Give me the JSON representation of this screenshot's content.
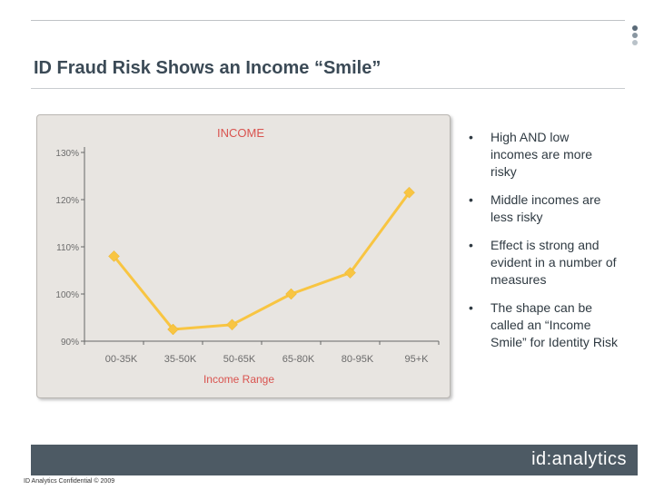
{
  "slide": {
    "title": "ID Fraud Risk Shows an Income “Smile”",
    "footer_logo": "id:analytics",
    "confidential": "ID Analytics Confidential © 2009"
  },
  "colors": {
    "line": "#f8c542",
    "marker": "#f8c542",
    "footer": "#4d5a64",
    "panel": "#e8e5e1",
    "dot_top": "#5a6a78",
    "dot_mid": "#8996a1",
    "dot_bottom": "#b9c2c9"
  },
  "bullets": [
    "High AND low incomes are more risky",
    "Middle incomes are less risky",
    "Effect is strong and evident in a number of measures",
    "The shape can be called an “Income Smile” for Identity Risk"
  ],
  "bullet_symbol": "•",
  "chart_data": {
    "type": "line",
    "title": "INCOME",
    "xlabel": "Income Range",
    "ylabel": "",
    "categories": [
      "00-35K",
      "35-50K",
      "50-65K",
      "65-80K",
      "80-95K",
      "95+K"
    ],
    "y_tick_labels": [
      "130%",
      "120%",
      "110%",
      "100%",
      "90%"
    ],
    "y_ticks": [
      130,
      120,
      110,
      100,
      90
    ],
    "ylim": [
      90,
      130
    ],
    "x_positions": [
      0,
      1,
      2,
      3,
      4,
      5,
      6
    ],
    "series": [
      {
        "x": [
          0.5,
          1.5,
          2.5,
          3.5,
          4.5,
          5.5
        ],
        "values": [
          108,
          92.5,
          93.5,
          100,
          104.5,
          121.5
        ]
      }
    ],
    "grid": false,
    "legend": "none"
  }
}
